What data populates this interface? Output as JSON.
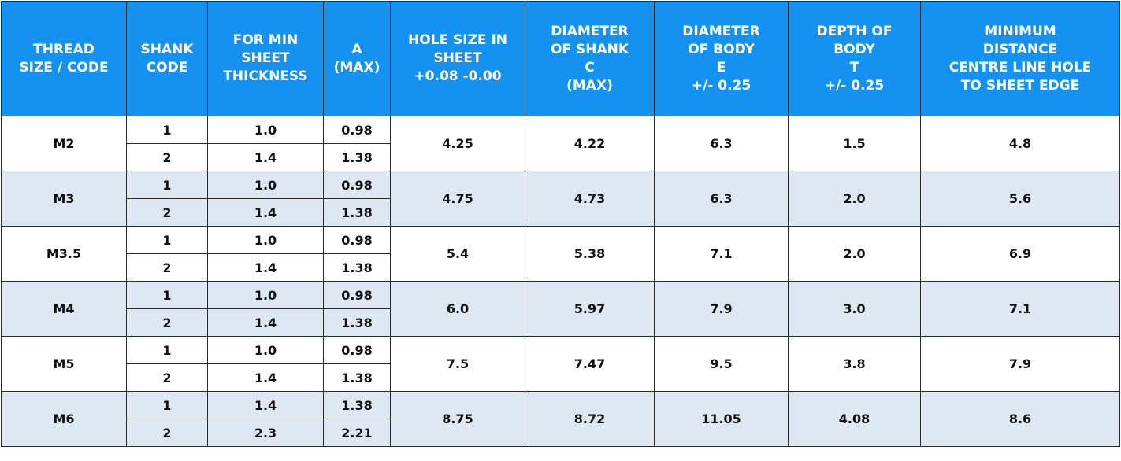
{
  "table": {
    "header": [
      "THREAD\nSIZE /  CODE",
      "SHANK\nCODE",
      "FOR MIN\nSHEET\nTHICKNESS",
      "A\n(MAX)",
      "HOLE SIZE IN\nSHEET\n+0.08 -0.00",
      "DIAMETER\nOF SHANK\nC\n(MAX)",
      "DIAMETER\nOF BODY\nE\n+/- 0.25",
      "DEPTH OF\nBODY\nT\n+/- 0.25",
      "MINIMUM\nDISTANCE\nCENTRE LINE HOLE\nTO SHEET EDGE"
    ],
    "groups": [
      {
        "thread": "M2",
        "rows": [
          {
            "shank": "1",
            "sheet": "1.0",
            "a": "0.98"
          },
          {
            "shank": "2",
            "sheet": "1.4",
            "a": "1.38"
          }
        ],
        "hole": "4.25",
        "shank_dia": "4.22",
        "body_dia": "6.3",
        "depth": "1.5",
        "min_dist": "4.8"
      },
      {
        "thread": "M3",
        "rows": [
          {
            "shank": "1",
            "sheet": "1.0",
            "a": "0.98"
          },
          {
            "shank": "2",
            "sheet": "1.4",
            "a": "1.38"
          }
        ],
        "hole": "4.75",
        "shank_dia": "4.73",
        "body_dia": "6.3",
        "depth": "2.0",
        "min_dist": "5.6"
      },
      {
        "thread": "M3.5",
        "rows": [
          {
            "shank": "1",
            "sheet": "1.0",
            "a": "0.98"
          },
          {
            "shank": "2",
            "sheet": "1.4",
            "a": "1.38"
          }
        ],
        "hole": "5.4",
        "shank_dia": "5.38",
        "body_dia": "7.1",
        "depth": "2.0",
        "min_dist": "6.9"
      },
      {
        "thread": "M4",
        "rows": [
          {
            "shank": "1",
            "sheet": "1.0",
            "a": "0.98"
          },
          {
            "shank": "2",
            "sheet": "1.4",
            "a": "1.38"
          }
        ],
        "hole": "6.0",
        "shank_dia": "5.97",
        "body_dia": "7.9",
        "depth": "3.0",
        "min_dist": "7.1"
      },
      {
        "thread": "M5",
        "rows": [
          {
            "shank": "1",
            "sheet": "1.0",
            "a": "0.98"
          },
          {
            "shank": "2",
            "sheet": "1.4",
            "a": "1.38"
          }
        ],
        "hole": "7.5",
        "shank_dia": "7.47",
        "body_dia": "9.5",
        "depth": "3.8",
        "min_dist": "7.9"
      },
      {
        "thread": "M6",
        "rows": [
          {
            "shank": "1",
            "sheet": "1.4",
            "a": "1.38"
          },
          {
            "shank": "2",
            "sheet": "2.3",
            "a": "2.21"
          }
        ],
        "hole": "8.75",
        "shank_dia": "8.72",
        "body_dia": "11.05",
        "depth": "4.08",
        "min_dist": "8.6"
      }
    ]
  }
}
